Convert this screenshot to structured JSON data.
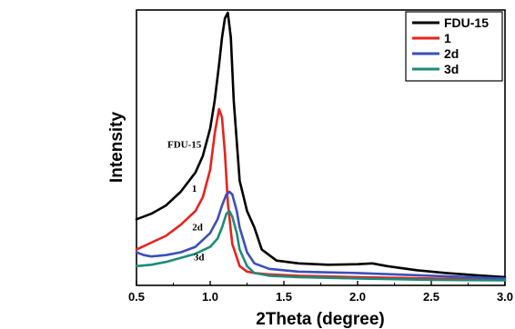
{
  "chart_data": {
    "type": "line",
    "title": "",
    "xlabel": "2Theta (degree)",
    "ylabel": "Intensity",
    "xlim": [
      0.5,
      3.0
    ],
    "ylim": [
      0,
      1
    ],
    "xticks": [
      "0.5",
      "1.0",
      "1.5",
      "2.0",
      "2.5",
      "3.0"
    ],
    "yticks_shown": false,
    "grid": false,
    "legend_position": "top-right",
    "series": [
      {
        "name": "FDU-15",
        "color": "#000000",
        "x": [
          0.5,
          0.6,
          0.7,
          0.8,
          0.9,
          0.95,
          1.0,
          1.03,
          1.06,
          1.08,
          1.1,
          1.12,
          1.14,
          1.16,
          1.2,
          1.25,
          1.3,
          1.35,
          1.45,
          1.6,
          1.8,
          2.0,
          2.1,
          2.2,
          2.4,
          2.6,
          2.8,
          3.0
        ],
        "y": [
          0.24,
          0.26,
          0.29,
          0.34,
          0.41,
          0.47,
          0.57,
          0.67,
          0.8,
          0.9,
          0.97,
          0.99,
          0.9,
          0.67,
          0.38,
          0.27,
          0.21,
          0.13,
          0.09,
          0.08,
          0.075,
          0.077,
          0.08,
          0.07,
          0.055,
          0.045,
          0.037,
          0.03
        ]
      },
      {
        "name": "1",
        "color": "#e8221e",
        "x": [
          0.5,
          0.6,
          0.7,
          0.8,
          0.9,
          0.95,
          1.0,
          1.03,
          1.06,
          1.08,
          1.1,
          1.12,
          1.15,
          1.2,
          1.25,
          1.3,
          1.4,
          1.6,
          2.0,
          2.5,
          3.0
        ],
        "y": [
          0.13,
          0.155,
          0.18,
          0.22,
          0.27,
          0.32,
          0.42,
          0.55,
          0.64,
          0.61,
          0.48,
          0.3,
          0.15,
          0.07,
          0.05,
          0.045,
          0.04,
          0.035,
          0.03,
          0.025,
          0.02
        ]
      },
      {
        "name": "2d",
        "color": "#3b4fb8",
        "x": [
          0.5,
          0.55,
          0.6,
          0.7,
          0.8,
          0.9,
          1.0,
          1.05,
          1.08,
          1.11,
          1.13,
          1.15,
          1.18,
          1.2,
          1.25,
          1.3,
          1.4,
          1.6,
          2.0,
          2.5,
          3.0
        ],
        "y": [
          0.12,
          0.11,
          0.105,
          0.11,
          0.12,
          0.14,
          0.19,
          0.24,
          0.29,
          0.33,
          0.34,
          0.33,
          0.27,
          0.21,
          0.12,
          0.08,
          0.06,
          0.05,
          0.045,
          0.035,
          0.025
        ]
      },
      {
        "name": "3d",
        "color": "#1f8a7a",
        "x": [
          0.5,
          0.6,
          0.7,
          0.8,
          0.9,
          1.0,
          1.05,
          1.08,
          1.11,
          1.13,
          1.15,
          1.18,
          1.2,
          1.25,
          1.3,
          1.4,
          1.6,
          2.0,
          2.5,
          3.0
        ],
        "y": [
          0.07,
          0.075,
          0.085,
          0.1,
          0.115,
          0.14,
          0.17,
          0.21,
          0.26,
          0.27,
          0.25,
          0.19,
          0.13,
          0.07,
          0.045,
          0.035,
          0.03,
          0.025,
          0.02,
          0.018
        ]
      }
    ],
    "annotations": [
      {
        "text": "FDU-15",
        "series": "FDU-15",
        "at_x": 0.94,
        "at_y": 0.5
      },
      {
        "text": "1",
        "series": "1",
        "at_x": 0.91,
        "at_y": 0.34
      },
      {
        "text": "2d",
        "series": "2d",
        "at_x": 0.95,
        "at_y": 0.2
      },
      {
        "text": "3d",
        "series": "3d",
        "at_x": 0.96,
        "at_y": 0.09
      }
    ]
  }
}
